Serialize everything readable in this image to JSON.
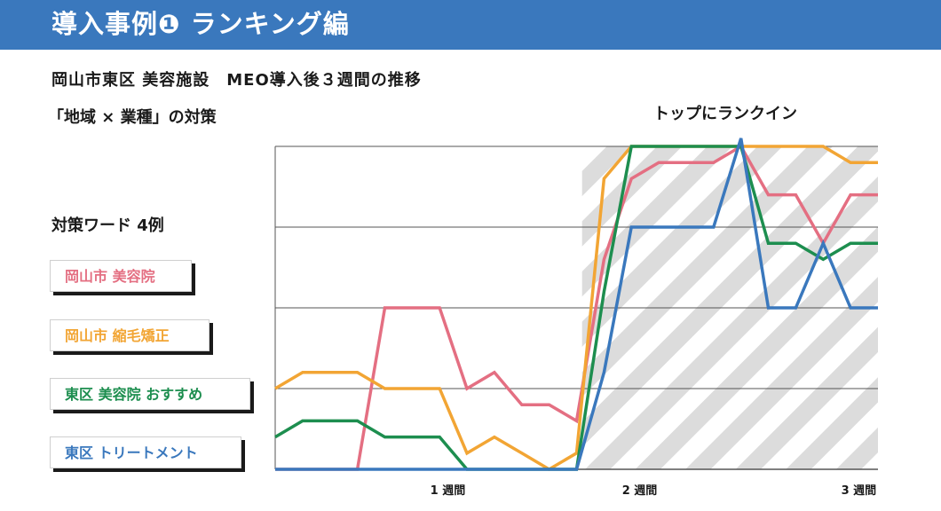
{
  "header": {
    "title": "導入事例❶ ランキング編"
  },
  "subtitle": "岡山市東区 美容施設　MEO導入後３週間の推移",
  "subtitle2": "「地域 × 業種」の対策",
  "annotation": "トップにランクイン",
  "keywords": {
    "heading": "対策ワード 4例",
    "items": [
      "岡山市 美容院",
      "岡山市 縮毛矯正",
      "東区 美容院 おすすめ",
      "東区 トリートメント"
    ]
  },
  "colors": {
    "header": "#3a78bd",
    "pink": "#e46f82",
    "orange": "#f2a534",
    "green": "#1d8e4f",
    "blue": "#3a78bd",
    "grid": "#555555",
    "hatch": "#d9d9d9"
  },
  "chart_data": {
    "type": "line",
    "x": [
      0,
      1,
      2,
      3,
      4,
      5,
      6,
      7,
      8,
      9,
      10,
      11,
      12,
      13,
      14,
      15,
      16,
      17,
      18,
      19,
      20,
      21,
      22
    ],
    "xlim": [
      0,
      22
    ],
    "ylim": [
      0,
      4
    ],
    "grid": true,
    "x_ticks": [
      {
        "x": 6.3,
        "label": "1 週間"
      },
      {
        "x": 13.3,
        "label": "2 週間"
      },
      {
        "x": 21.3,
        "label": "3 週間"
      }
    ],
    "highlight_region": {
      "x_start": 11.2,
      "x_end": 22
    },
    "series": [
      {
        "color": "pink",
        "values": [
          0,
          0,
          0,
          0,
          2,
          2,
          2,
          1,
          1.2,
          0.8,
          0.8,
          0.6,
          2.6,
          3.6,
          3.8,
          3.8,
          3.8,
          4,
          3.4,
          3.4,
          2.8,
          3.4,
          3.4
        ]
      },
      {
        "color": "orange",
        "values": [
          1,
          1.2,
          1.2,
          1.2,
          1,
          1,
          1,
          0.2,
          0.4,
          0.2,
          0,
          0.2,
          3.6,
          4,
          4,
          4,
          4,
          4,
          4,
          4,
          4,
          3.8,
          3.8
        ]
      },
      {
        "color": "green",
        "values": [
          0.4,
          0.6,
          0.6,
          0.6,
          0.4,
          0.4,
          0.4,
          0,
          0,
          0,
          0,
          0,
          2.2,
          4,
          4,
          4,
          4,
          4,
          2.8,
          2.8,
          2.6,
          2.8,
          2.8
        ]
      },
      {
        "color": "blue",
        "values": [
          0,
          0,
          0,
          0,
          0,
          0,
          0,
          0,
          0,
          0,
          0,
          0,
          1.2,
          3,
          3,
          3,
          3,
          4.1,
          2,
          2,
          2.8,
          2,
          2
        ]
      }
    ]
  }
}
